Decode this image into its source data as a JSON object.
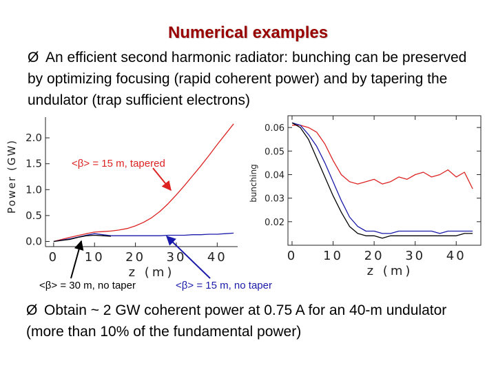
{
  "title": "Numerical examples",
  "bullet_glyph": "Ø",
  "paragraph1": "An efficient second harmonic radiator: bunching can be preserved by optimizing focusing (rapid coherent power) and by tapering the undulator (trap sufficient electrons)",
  "paragraph2": "Obtain ~ 2 GW coherent power at 0.75 A for an 40-m undulator (more than 10% of the fundamental power)",
  "annotations": {
    "tapered": "<β> = 15 m, tapered",
    "no_taper_30": "<β> = 30 m, no taper",
    "no_taper_15": "<β> = 15 m, no taper"
  },
  "colors": {
    "title": "#990000",
    "red": "#dd2222",
    "blue": "#1a1aaa",
    "black": "#000000"
  },
  "chart_data": [
    {
      "type": "line",
      "title": "",
      "xlabel": "z (m)",
      "ylabel": "Power (GW)",
      "xlim": [
        -2,
        45
      ],
      "ylim": [
        -0.1,
        2.4
      ],
      "xticks": [
        0,
        10,
        20,
        30,
        40
      ],
      "yticks": [
        0.0,
        0.5,
        1.0,
        1.5,
        2.0
      ],
      "series": [
        {
          "name": "<β> = 15 m, tapered",
          "color": "#dd2222",
          "x": [
            0,
            4,
            8,
            10,
            12,
            14,
            16,
            18,
            20,
            22,
            24,
            26,
            28,
            30,
            32,
            34,
            36,
            38,
            40,
            42,
            44
          ],
          "y": [
            0.0,
            0.08,
            0.15,
            0.18,
            0.19,
            0.2,
            0.22,
            0.25,
            0.3,
            0.37,
            0.46,
            0.58,
            0.73,
            0.9,
            1.08,
            1.27,
            1.46,
            1.66,
            1.87,
            2.07,
            2.27
          ]
        },
        {
          "name": "<β> = 15 m, no taper",
          "color": "#1a1aaa",
          "x": [
            0,
            4,
            8,
            10,
            12,
            14,
            16,
            18,
            20,
            22,
            24,
            26,
            28,
            30,
            32,
            34,
            36,
            38,
            40,
            42,
            44
          ],
          "y": [
            0.0,
            0.05,
            0.12,
            0.15,
            0.13,
            0.11,
            0.11,
            0.11,
            0.11,
            0.11,
            0.11,
            0.11,
            0.12,
            0.12,
            0.12,
            0.13,
            0.13,
            0.14,
            0.14,
            0.15,
            0.16
          ]
        },
        {
          "name": "<β> = 30 m, no taper",
          "color": "#000000",
          "x": [
            0,
            4,
            6,
            8,
            10,
            12,
            14
          ],
          "y": [
            0.0,
            0.04,
            0.08,
            0.11,
            0.12,
            0.11,
            0.1
          ]
        }
      ]
    },
    {
      "type": "line",
      "title": "",
      "xlabel": "z (m)",
      "ylabel": "bunching",
      "xlim": [
        -1,
        46
      ],
      "ylim": [
        0.01,
        0.065
      ],
      "xticks": [
        0,
        10,
        20,
        30,
        40
      ],
      "yticks": [
        0.02,
        0.03,
        0.04,
        0.05,
        0.06
      ],
      "series": [
        {
          "name": "<β> = 15 m, tapered",
          "color": "#dd2222",
          "x": [
            0,
            2,
            4,
            6,
            8,
            10,
            12,
            14,
            16,
            18,
            20,
            22,
            24,
            26,
            28,
            30,
            32,
            34,
            36,
            38,
            40,
            42,
            44
          ],
          "y": [
            0.061,
            0.061,
            0.06,
            0.058,
            0.053,
            0.046,
            0.04,
            0.037,
            0.036,
            0.037,
            0.038,
            0.036,
            0.037,
            0.039,
            0.038,
            0.04,
            0.041,
            0.039,
            0.04,
            0.042,
            0.039,
            0.041,
            0.034
          ]
        },
        {
          "name": "<β> = 15 m, no taper",
          "color": "#1a1aaa",
          "x": [
            0,
            2,
            4,
            6,
            8,
            10,
            12,
            14,
            16,
            18,
            20,
            22,
            24,
            26,
            28,
            30,
            32,
            34,
            36,
            38,
            40,
            42,
            44
          ],
          "y": [
            0.062,
            0.061,
            0.057,
            0.052,
            0.045,
            0.037,
            0.029,
            0.022,
            0.018,
            0.016,
            0.016,
            0.015,
            0.015,
            0.016,
            0.016,
            0.016,
            0.016,
            0.016,
            0.015,
            0.016,
            0.016,
            0.016,
            0.016
          ]
        },
        {
          "name": "<β> = 30 m, no taper",
          "color": "#000000",
          "x": [
            0,
            2,
            4,
            6,
            8,
            10,
            12,
            14,
            16,
            18,
            20,
            22,
            24,
            26,
            28,
            30,
            32,
            34,
            36,
            38,
            40,
            42,
            44
          ],
          "y": [
            0.062,
            0.06,
            0.055,
            0.047,
            0.039,
            0.031,
            0.024,
            0.018,
            0.015,
            0.014,
            0.014,
            0.013,
            0.014,
            0.014,
            0.014,
            0.014,
            0.014,
            0.014,
            0.014,
            0.014,
            0.014,
            0.015,
            0.015
          ]
        }
      ]
    }
  ]
}
